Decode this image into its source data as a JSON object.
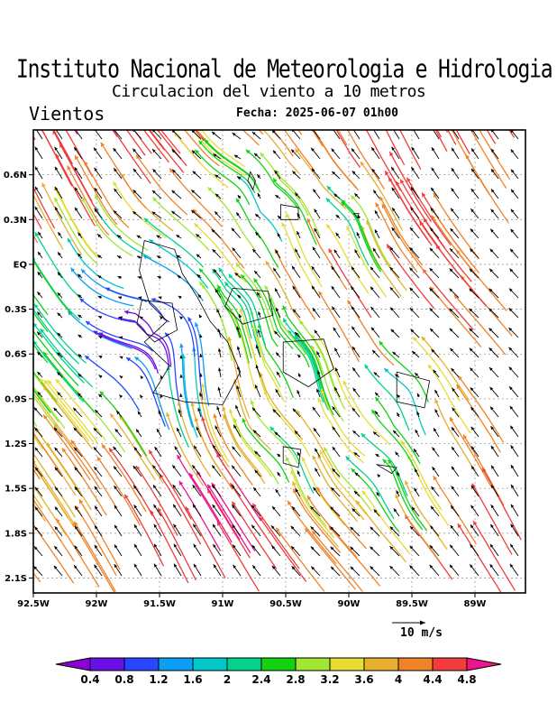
{
  "header": {
    "institution": "Instituto Nacional de Meteorologia e Hidrologia",
    "subtitle": "Circulacion del viento a 10 metros",
    "variable": "Vientos",
    "date_line": "Fecha: 2025-06-07 01h00"
  },
  "map": {
    "lon_range": [
      -92.5,
      -88.6
    ],
    "lat_range": [
      -2.2,
      0.9
    ],
    "lon_ticks": [
      {
        "value": -92.5,
        "label": "92.5W"
      },
      {
        "value": -92.0,
        "label": "92W"
      },
      {
        "value": -91.5,
        "label": "91.5W"
      },
      {
        "value": -91.0,
        "label": "91W"
      },
      {
        "value": -90.5,
        "label": "90.5W"
      },
      {
        "value": -90.0,
        "label": "90W"
      },
      {
        "value": -89.5,
        "label": "89.5W"
      },
      {
        "value": -89.0,
        "label": "89W"
      }
    ],
    "lat_ticks": [
      {
        "value": 0.6,
        "label": "0.6N"
      },
      {
        "value": 0.3,
        "label": "0.3N"
      },
      {
        "value": 0.0,
        "label": "EQ"
      },
      {
        "value": -0.3,
        "label": "0.3S"
      },
      {
        "value": -0.6,
        "label": "0.6S"
      },
      {
        "value": -0.9,
        "label": "0.9S"
      },
      {
        "value": -1.2,
        "label": "1.2S"
      },
      {
        "value": -1.5,
        "label": "1.5S"
      },
      {
        "value": -1.8,
        "label": "1.8S"
      },
      {
        "value": -2.1,
        "label": "2.1S"
      }
    ],
    "grid": true,
    "prevailing_wind": "southeasterly",
    "reference_vector": {
      "speed": 10,
      "label": "10 m/s"
    }
  },
  "colorbar": {
    "labels": [
      "0.4",
      "0.8",
      "1.2",
      "1.6",
      "2",
      "2.4",
      "2.8",
      "3.2",
      "3.6",
      "4",
      "4.4",
      "4.8"
    ],
    "colors": [
      "#8b00d4",
      "#6a0fe6",
      "#2846ff",
      "#0a9ef4",
      "#00c8c8",
      "#00d28c",
      "#12d212",
      "#a0e632",
      "#e6dc32",
      "#e6af2d",
      "#f08228",
      "#f03c3c",
      "#f0148c"
    ]
  }
}
